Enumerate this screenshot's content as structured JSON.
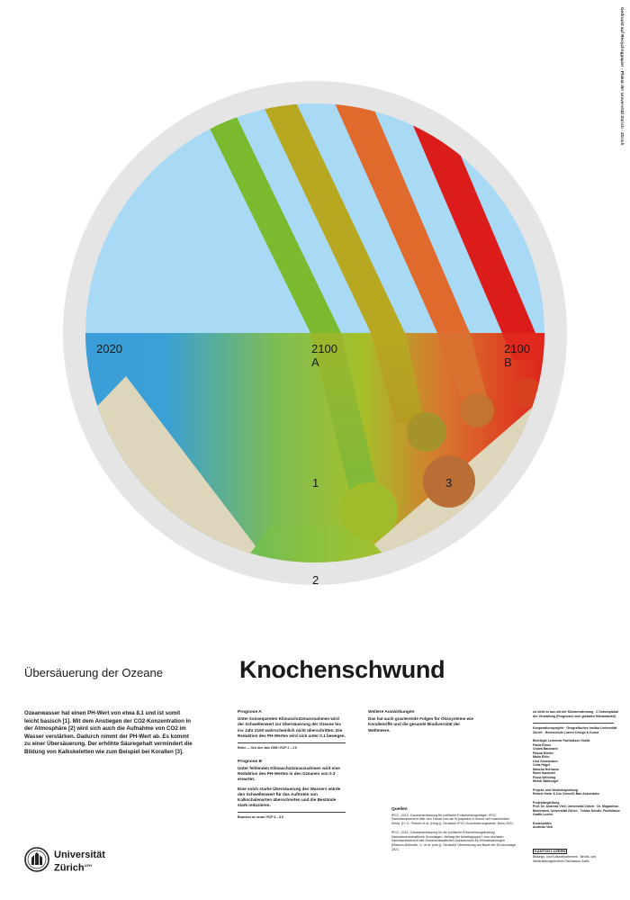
{
  "side_text": "Gedruckt auf Recyclingpapier · Plakat der Universität Zürich · Zürich",
  "graphic": {
    "label_2020": "2020",
    "label_2100a_year": "2100",
    "label_2100a_letter": "A",
    "label_2100b_year": "2100",
    "label_2100b_letter": "B",
    "marker_1": "1",
    "marker_2": "2",
    "marker_3": "3",
    "colors": {
      "sky": "#a8daf5",
      "rim": "#e5e5e5",
      "sand": "#ddd6bb",
      "ocean_2020": "#3a9dd8",
      "acid_green": "#93c332",
      "acid_orange": "#e06a2c",
      "acid_red": "#e0201c",
      "band_green": "#7bb92f",
      "band_olive": "#b8a821",
      "band_orange": "#e06a2c",
      "band_red": "#dc1c1a",
      "coral_brown": "#b86e35"
    }
  },
  "subtitle": "Übersäuerung der Ozeane",
  "title": "Knochenschwund",
  "intro": "Ozeanwasser hat einen PH-Wert von etwa 8.1 und ist somit leicht basisch [1]. Mit dem Anstiegen der CO2-Konzentration in der Atmosphäre [2] wird sich auch die Aufnahme von CO2 im Wasser verstärken. Dadurch nimmt der PH-Wert ab. Es kommt zu einer Übersäuerung. Der erhöhte Säuregehalt vermindert die Bildung von Kalkskeletten wie zum Beispiel bei Korallen [3].",
  "prognose_a": {
    "heading": "Prognose A",
    "text": "Unter konsequenten Klimaschutzmassnahmen wird der Schwellenwert zur Übersäuerung der Ozeane bis ins Jahr 2100 wahrscheinlich nicht überschritten. Die Reduktion des PH-Wertes wird sich unter 0.1 bewegen.",
    "note": "Reihe — Ozh den Jahr 2050 / RCP 2 – 2.6"
  },
  "prognose_b": {
    "heading": "Prognose B",
    "text": "Unter fehlenden Klimaschutzmassnahmen wird eine Reduktion des PH-Wertes in den Ozeanen von 0.3 erwartet.",
    "text2": "Eine solch starke Übersäuerung des Wassers würde den Schwellenwert für das Auftreten von Kalkschalenarten überschreiten und die Bestände stark reduzieren.",
    "note": "Business as usual / RCP 8 – 8.5"
  },
  "effects": {
    "heading": "Weitere Auswirkungen",
    "text": "Das hat auch gravierende Folgen für Ökosysteme wie Korallenriffe und die gesamte Biodiversität der Weltmeere."
  },
  "sources": {
    "heading": "Quellen",
    "items": [
      "IPCC, 2013: Zusammenfassung für politische Entscheidungsträger. IPCC Sachstandsbericht über den Ozean und die Kryosphäre in einem sich wandelnden Klima. [H.-O. Pörtner et al. (Hrsg.)]. Deutsche IPCC-Koordinierungsstelle, Bonn 2021.",
      "IPCC, 2021: Zusammenfassung für die politische Entscheidungsfindung. Naturwissenschaftliche Grundlagen. Beitrag der Arbeitsgruppe I zum sechsten Sachstandsbericht des Zwischenstaatlichen Ausschusses für Klimaänderungen [Masson-Delmotte, V., et al. (eds.)]. Deutsche Übersetzung auf Basis der Druckvorlage, 2021."
    ]
  },
  "credits": {
    "header": "so sieht es aus mit der Klimaerwärmung · 2 Ostseeplakat der Verwaltung (Prognosen zum globalen Klimawandel)",
    "project": "Kooperationsprojekt · Geografisches Institut Universität Zürich · Hochschule Luzern Design & Kunst",
    "students_head": "Beteiligte Lernende Fachklasse Grafik",
    "students": [
      "Paula Ebner",
      "Chiara Baumann",
      "Pascal Bieder",
      "Malin Ehlin",
      "Lina Grossmann",
      "Celia Högel",
      "Mascha Hermann",
      "Rami Gambetti",
      "Fiona Wehrling",
      "Mehdi Waldvogel"
    ],
    "lead_head": "Projekt- und Workshopleitung",
    "lead": "Robert Gmür & Urs Comolli, Bari Associates",
    "support_head": "Projektbegleitung",
    "support": "Prof. Dr. Andreas Vieli, Universität Zürich · Dr. Magdalena Bachmann, Universität Zürich · Tobias Künzle, Fachklasse Grafik Luzern",
    "concept_head": "Konzeptidee",
    "concept": "Andreas Vieli",
    "kanton_box": "KANTON LUZERN",
    "kanton_text": "Bildungs- und Kulturdepartement · Berufs- und Weiterbildungszentrum Fachklasse Grafik"
  },
  "logo": {
    "name_line1": "Universität",
    "name_line2": "Zürich",
    "name_sup": "UZH"
  }
}
